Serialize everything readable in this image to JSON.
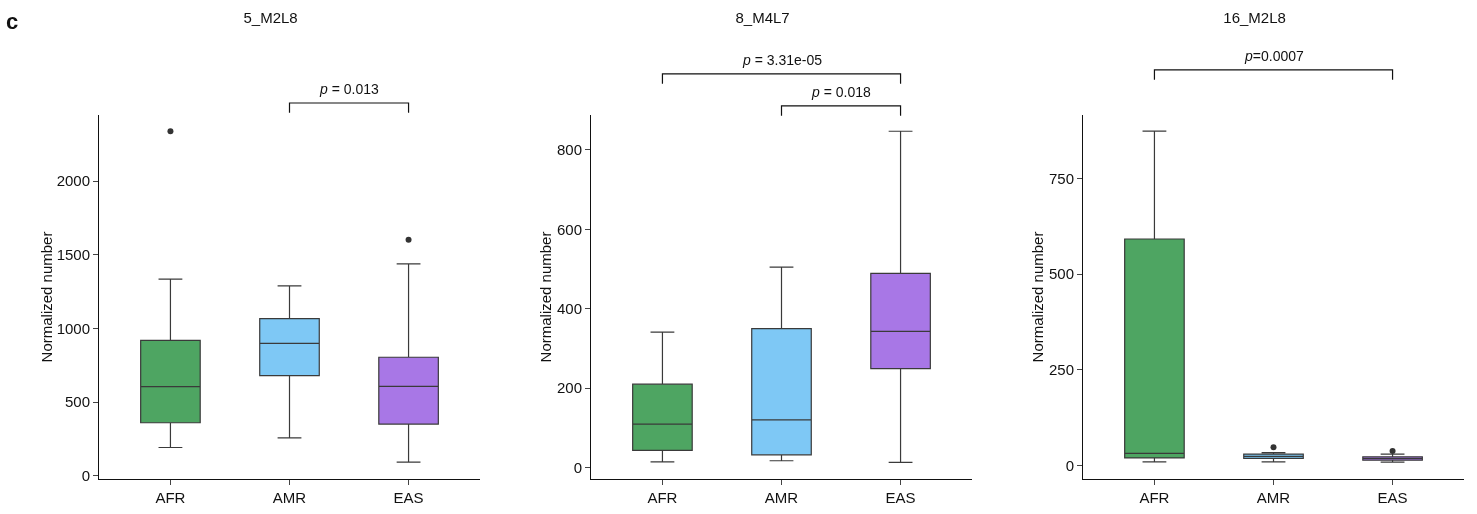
{
  "chart_data": [
    {
      "type": "box",
      "title": "5_M2L8",
      "ylabel": "Normalized number",
      "categories": [
        "AFR",
        "AMR",
        "EAS"
      ],
      "colors": [
        "#4ea562",
        "#7ec8f5",
        "#a877e6"
      ],
      "boxes": [
        {
          "low": 191,
          "q1": 359,
          "median": 604,
          "q3": 919,
          "high": 1335,
          "outliers": [
            2340
          ]
        },
        {
          "low": 257,
          "q1": 679,
          "median": 899,
          "q3": 1067,
          "high": 1289
        },
        {
          "low": 91,
          "q1": 350,
          "median": 606,
          "q3": 804,
          "high": 1439,
          "outliers": [
            1603
          ]
        }
      ],
      "ylim": [
        -23,
        2450
      ],
      "yticks": [
        0,
        500,
        1000,
        1500,
        2000
      ],
      "grid": false,
      "annotations": [
        "c",
        "p = 0.013"
      ]
    },
    {
      "type": "box",
      "title": "8_M4L7",
      "ylabel": "Normalized number",
      "categories": [
        "AFR",
        "AMR",
        "EAS"
      ],
      "colors": [
        "#4ea562",
        "#7ec8f5",
        "#a877e6"
      ],
      "boxes": [
        {
          "low": 14,
          "q1": 43,
          "median": 109,
          "q3": 210,
          "high": 341
        },
        {
          "low": 17,
          "q1": 32,
          "median": 120,
          "q3": 350,
          "high": 505
        },
        {
          "low": 13,
          "q1": 249,
          "median": 343,
          "q3": 489,
          "high": 847
        }
      ],
      "ylim": [
        -29,
        888
      ],
      "yticks": [
        0,
        200,
        400,
        600,
        800
      ],
      "grid": false,
      "annotations": [
        "p = 3.31e-05",
        "p = 0.018"
      ]
    },
    {
      "type": "box",
      "title": "16_M2L8",
      "ylabel": "Normalized number",
      "categories": [
        "AFR",
        "AMR",
        "EAS"
      ],
      "colors": [
        "#4ea562",
        "#7ec8f5",
        "#a877e6"
      ],
      "boxes": [
        {
          "low": 10,
          "q1": 20,
          "median": 32,
          "q3": 592,
          "high": 874
        },
        {
          "low": 10,
          "q1": 19,
          "median": 24,
          "q3": 30,
          "high": 34,
          "outliers": [
            48
          ]
        },
        {
          "low": 9,
          "q1": 14,
          "median": 18,
          "q3": 23,
          "high": 30,
          "outliers": [
            38
          ]
        }
      ],
      "ylim": [
        -35,
        916
      ],
      "yticks": [
        0,
        250,
        500,
        750
      ],
      "grid": false,
      "annotations": [
        "p=0.0007"
      ]
    }
  ]
}
